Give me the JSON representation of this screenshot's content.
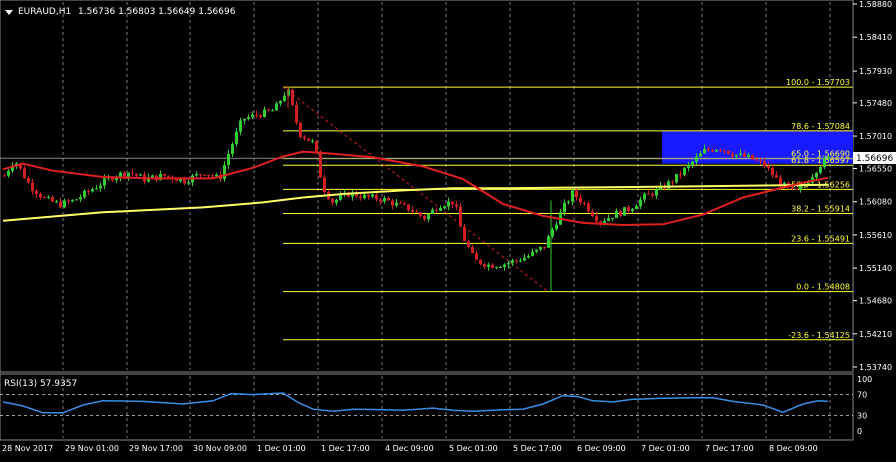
{
  "header": {
    "symbol": "EURAUD,H1",
    "ohlc": "1.56736 1.56803 1.56649 1.56696"
  },
  "rsi": {
    "label": "RSI(13) 57.9357",
    "levels": [
      "100",
      "70",
      "30",
      "0"
    ]
  },
  "price_axis": {
    "ticks": [
      "1.58880",
      "1.58410",
      "1.57930",
      "1.57480",
      "1.57010",
      "1.56550",
      "1.56080",
      "1.55610",
      "1.55140",
      "1.54680",
      "1.54210",
      "1.53740"
    ],
    "current_price": "1.56696"
  },
  "time_axis": {
    "ticks": [
      "28 Nov 2017",
      "29 Nov 01:00",
      "29 Nov 17:00",
      "30 Nov 09:00",
      "1 Dec 01:00",
      "1 Dec 17:00",
      "4 Dec 09:00",
      "5 Dec 01:00",
      "5 Dec 17:00",
      "6 Dec 09:00",
      "7 Dec 01:00",
      "7 Dec 17:00",
      "8 Dec 09:00"
    ]
  },
  "fibonacci": [
    {
      "label": "100.0 - 1.57703",
      "price": 1.57703
    },
    {
      "label": "78.6 - 1.57084",
      "price": 1.57084
    },
    {
      "label": "65.0 - 1.56690",
      "price": 1.5669
    },
    {
      "label": "61.8 - 1.56597",
      "price": 1.56597
    },
    {
      "label": "50.0 - 1.56256",
      "price": 1.56256
    },
    {
      "label": "38.2 - 1.55914",
      "price": 1.55914
    },
    {
      "label": "23.6 - 1.55491",
      "price": 1.55491
    },
    {
      "label": "0.0 - 1.54808",
      "price": 1.54808
    },
    {
      "label": "-23.6 - 1.54125",
      "price": 1.54125
    }
  ],
  "colors": {
    "background": "#000000",
    "bull": "#33cc33",
    "bear": "#d02020",
    "fib": "#ffff33",
    "ma_fast": "#e02020",
    "ma_slow": "#ffff66",
    "rsi_line": "#3a8ee6",
    "zone": "#1a1aff",
    "grid": "#ffffff"
  },
  "chart_data": {
    "type": "candlestick",
    "symbol": "EURAUD",
    "timeframe": "H1",
    "ylim": [
      1.5374,
      1.5888
    ],
    "current_price": 1.56696,
    "ma_fast": [
      [
        0,
        1.5654
      ],
      [
        20,
        1.5662
      ],
      [
        50,
        1.5652
      ],
      [
        100,
        1.5643
      ],
      [
        150,
        1.5641
      ],
      [
        210,
        1.5641
      ],
      [
        250,
        1.5656
      ],
      [
        280,
        1.5672
      ],
      [
        300,
        1.5679
      ],
      [
        330,
        1.5676
      ],
      [
        370,
        1.5671
      ],
      [
        420,
        1.5658
      ],
      [
        460,
        1.564
      ],
      [
        500,
        1.5605
      ],
      [
        540,
        1.5588
      ],
      [
        580,
        1.5578
      ],
      [
        620,
        1.5575
      ],
      [
        660,
        1.5576
      ],
      [
        700,
        1.559
      ],
      [
        740,
        1.5614
      ],
      [
        780,
        1.5628
      ],
      [
        800,
        1.5635
      ],
      [
        825,
        1.5642
      ]
    ],
    "ma_slow": [
      [
        0,
        1.5581
      ],
      [
        100,
        1.5593
      ],
      [
        200,
        1.56
      ],
      [
        260,
        1.5607
      ],
      [
        300,
        1.5614
      ],
      [
        340,
        1.5619
      ],
      [
        400,
        1.5624
      ],
      [
        450,
        1.5627
      ],
      [
        500,
        1.5627
      ],
      [
        560,
        1.5628
      ],
      [
        640,
        1.5629
      ],
      [
        700,
        1.563
      ],
      [
        760,
        1.5631
      ],
      [
        825,
        1.5632
      ]
    ],
    "anchors": [
      [
        0,
        1.5645
      ],
      [
        10,
        1.5668
      ],
      [
        25,
        1.5632
      ],
      [
        40,
        1.5612
      ],
      [
        55,
        1.5604
      ],
      [
        70,
        1.561
      ],
      [
        90,
        1.5628
      ],
      [
        110,
        1.5645
      ],
      [
        125,
        1.565
      ],
      [
        140,
        1.564
      ],
      [
        160,
        1.5645
      ],
      [
        180,
        1.5638
      ],
      [
        200,
        1.565
      ],
      [
        215,
        1.564
      ],
      [
        225,
        1.568
      ],
      [
        238,
        1.5725
      ],
      [
        255,
        1.5732
      ],
      [
        270,
        1.5738
      ],
      [
        283,
        1.5768
      ],
      [
        295,
        1.5705
      ],
      [
        310,
        1.569
      ],
      [
        318,
        1.563
      ],
      [
        328,
        1.5608
      ],
      [
        345,
        1.562
      ],
      [
        360,
        1.5615
      ],
      [
        378,
        1.5612
      ],
      [
        392,
        1.5604
      ],
      [
        405,
        1.5598
      ],
      [
        420,
        1.5585
      ],
      [
        435,
        1.5604
      ],
      [
        450,
        1.5608
      ],
      [
        458,
        1.556
      ],
      [
        470,
        1.5525
      ],
      [
        485,
        1.5518
      ],
      [
        500,
        1.552
      ],
      [
        512,
        1.5525
      ],
      [
        525,
        1.5532
      ],
      [
        540,
        1.5545
      ],
      [
        550,
        1.5575
      ],
      [
        560,
        1.5602
      ],
      [
        568,
        1.562
      ],
      [
        580,
        1.5605
      ],
      [
        595,
        1.558
      ],
      [
        610,
        1.559
      ],
      [
        625,
        1.5598
      ],
      [
        640,
        1.5615
      ],
      [
        655,
        1.5625
      ],
      [
        670,
        1.564
      ],
      [
        685,
        1.566
      ],
      [
        700,
        1.568
      ],
      [
        715,
        1.5685
      ],
      [
        730,
        1.5675
      ],
      [
        745,
        1.567
      ],
      [
        760,
        1.566
      ],
      [
        775,
        1.5635
      ],
      [
        790,
        1.562
      ],
      [
        805,
        1.564
      ],
      [
        815,
        1.566
      ],
      [
        825,
        1.567
      ]
    ],
    "rsi": [
      [
        0,
        56
      ],
      [
        20,
        48
      ],
      [
        40,
        35
      ],
      [
        60,
        35
      ],
      [
        80,
        50
      ],
      [
        100,
        58
      ],
      [
        140,
        57
      ],
      [
        180,
        52
      ],
      [
        210,
        58
      ],
      [
        228,
        72
      ],
      [
        250,
        70
      ],
      [
        280,
        73
      ],
      [
        295,
        55
      ],
      [
        310,
        42
      ],
      [
        330,
        38
      ],
      [
        350,
        42
      ],
      [
        380,
        41
      ],
      [
        400,
        40
      ],
      [
        430,
        44
      ],
      [
        450,
        40
      ],
      [
        470,
        38
      ],
      [
        500,
        41
      ],
      [
        520,
        42
      ],
      [
        540,
        52
      ],
      [
        560,
        68
      ],
      [
        575,
        66
      ],
      [
        590,
        58
      ],
      [
        610,
        56
      ],
      [
        630,
        61
      ],
      [
        660,
        63
      ],
      [
        690,
        64
      ],
      [
        710,
        64
      ],
      [
        730,
        57
      ],
      [
        760,
        50
      ],
      [
        780,
        36
      ],
      [
        800,
        52
      ],
      [
        815,
        58
      ],
      [
        825,
        57
      ]
    ],
    "rsi_ylim": [
      0,
      100
    ]
  }
}
